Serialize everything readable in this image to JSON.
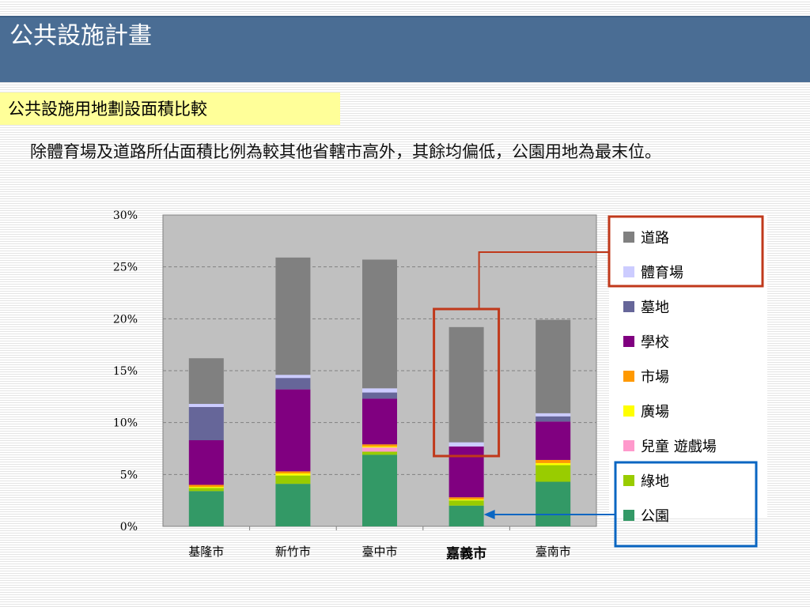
{
  "slide": {
    "title": "公共設施計畫",
    "subtitle": "公共設施用地劃設面積比較",
    "description": "除體育場及道路所佔面積比例為較其他省轄市高外，其餘均偏低，公園用地為最末位。"
  },
  "chart_data": {
    "type": "bar",
    "stacked": true,
    "categories": [
      "基隆市",
      "新竹市",
      "臺中市",
      "嘉義市",
      "臺南市"
    ],
    "highlight_category": "嘉義市",
    "y_ticks": [
      "0%",
      "5%",
      "10%",
      "15%",
      "20%",
      "25%",
      "30%"
    ],
    "ylim": [
      0,
      30
    ],
    "grid": true,
    "legend_position": "right",
    "series": [
      {
        "name": "公園",
        "color": "#339966",
        "values": [
          3.4,
          4.1,
          6.9,
          2.0,
          4.3
        ]
      },
      {
        "name": "綠地",
        "color": "#99cc00",
        "values": [
          0.3,
          0.8,
          0.3,
          0.5,
          1.6
        ]
      },
      {
        "name": "兒童 遊戲場",
        "color": "#ff99cc",
        "values": [
          0.0,
          0.0,
          0.4,
          0.0,
          0.0
        ]
      },
      {
        "name": "廣場",
        "color": "#ffff00",
        "values": [
          0.1,
          0.2,
          0.1,
          0.1,
          0.2
        ]
      },
      {
        "name": "市場",
        "color": "#ff9900",
        "values": [
          0.2,
          0.2,
          0.2,
          0.2,
          0.3
        ]
      },
      {
        "name": "學校",
        "color": "#800080",
        "values": [
          4.3,
          7.9,
          4.4,
          4.9,
          3.7
        ]
      },
      {
        "name": "墓地",
        "color": "#666699",
        "values": [
          3.2,
          1.1,
          0.6,
          0.0,
          0.5
        ]
      },
      {
        "name": "體育場",
        "color": "#ccccff",
        "values": [
          0.3,
          0.3,
          0.4,
          0.4,
          0.3
        ]
      },
      {
        "name": "道路",
        "color": "#808080",
        "values": [
          4.4,
          11.3,
          12.4,
          11.1,
          9.0
        ]
      }
    ]
  }
}
